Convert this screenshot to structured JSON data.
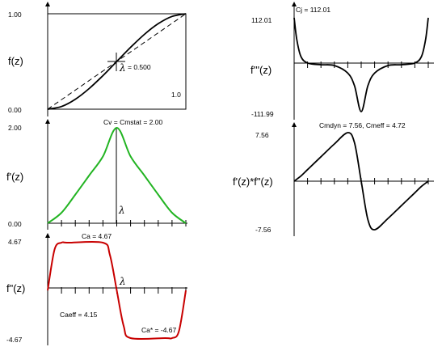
{
  "chart_data": [
    {
      "id": "pos",
      "type": "line",
      "ylabel": "f(z)",
      "yticks": [
        "1.00",
        "0.00"
      ],
      "ylim": [
        0,
        1
      ],
      "xlim": [
        0,
        1
      ],
      "series_color": "#000000",
      "annotations": [
        "= 0.500",
        "1.0"
      ],
      "lambda": "λ",
      "x": [
        0,
        0.1,
        0.2,
        0.3,
        0.4,
        0.5,
        0.6,
        0.7,
        0.8,
        0.9,
        1.0
      ],
      "values": [
        0,
        0.028,
        0.104,
        0.216,
        0.352,
        0.5,
        0.648,
        0.784,
        0.896,
        0.972,
        1.0
      ]
    },
    {
      "id": "vel",
      "type": "line",
      "ylabel": "f'(z)",
      "yticks": [
        "2.00",
        "0.00"
      ],
      "ylim": [
        0,
        2
      ],
      "xlim": [
        0,
        1
      ],
      "series_color": "#22b422",
      "annotations": [
        "Cv = Cmstat = 2.00"
      ],
      "lambda": "λ",
      "x": [
        0,
        0.1,
        0.2,
        0.3,
        0.4,
        0.5,
        0.6,
        0.7,
        0.8,
        0.9,
        1.0
      ],
      "values": [
        0,
        0.22,
        0.6,
        1.0,
        1.4,
        2.0,
        1.4,
        1.0,
        0.6,
        0.22,
        0
      ]
    },
    {
      "id": "acc",
      "type": "line",
      "ylabel": "f\"(z)",
      "yticks": [
        "4.67",
        "-4.67"
      ],
      "ylim": [
        -4.67,
        4.67
      ],
      "xlim": [
        0,
        1
      ],
      "series_color": "#c80000",
      "annotations": [
        "Ca = 4.67",
        "Caeff = 4.15",
        "Ca* = -4.67"
      ],
      "lambda": "λ",
      "x": [
        0,
        0.05,
        0.1,
        0.15,
        0.4,
        0.45,
        0.5,
        0.55,
        0.6,
        0.85,
        0.9,
        0.95,
        1.0
      ],
      "values": [
        0,
        4.0,
        4.67,
        4.67,
        4.67,
        3.5,
        0,
        -3.5,
        -4.67,
        -4.67,
        -4.67,
        -4.0,
        0
      ]
    },
    {
      "id": "jerk",
      "type": "line",
      "ylabel": "f'''(z)",
      "yticks": [
        "112.01",
        "-111.99"
      ],
      "ylim": [
        -112,
        112
      ],
      "xlim": [
        0,
        1
      ],
      "series_color": "#000000",
      "annotations": [
        "Cj = 112.01"
      ],
      "x": [
        0,
        0.02,
        0.05,
        0.1,
        0.2,
        0.3,
        0.4,
        0.45,
        0.5,
        0.55,
        0.6,
        0.7,
        0.8,
        0.9,
        0.95,
        0.98,
        1.0
      ],
      "values": [
        112,
        60,
        20,
        4,
        0,
        -2,
        -20,
        -50,
        -112,
        -50,
        -20,
        -2,
        0,
        4,
        20,
        60,
        112
      ]
    },
    {
      "id": "power",
      "type": "line",
      "ylabel": "f'(z)*f\"(z)",
      "yticks": [
        "7.56",
        "-7.56"
      ],
      "ylim": [
        -7.56,
        7.56
      ],
      "xlim": [
        0,
        1
      ],
      "series_color": "#000000",
      "annotations": [
        "Cmdyn = 7.56, Cmeff = 4.72"
      ],
      "x": [
        0,
        0.05,
        0.1,
        0.2,
        0.3,
        0.4,
        0.45,
        0.5,
        0.55,
        0.6,
        0.7,
        0.8,
        0.9,
        0.95,
        1.0
      ],
      "values": [
        0,
        0.8,
        1.8,
        3.8,
        5.8,
        7.56,
        6.0,
        0,
        -6.0,
        -7.56,
        -5.8,
        -3.8,
        -1.8,
        -0.8,
        0
      ]
    }
  ]
}
